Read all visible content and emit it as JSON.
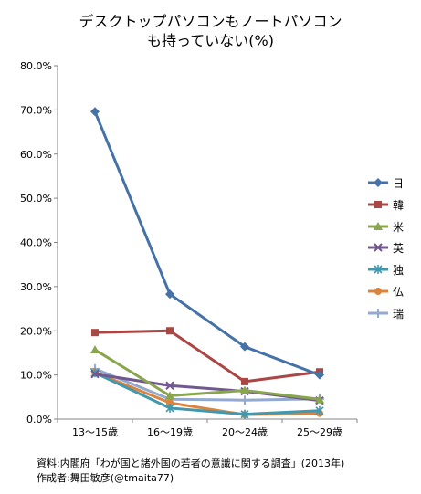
{
  "title_line1": "デスクトップパソコンもノートパソコン",
  "title_line2": "も持っていない(%)",
  "source_note": "資料:内閣府「わが国と諸外国の若者の意識に関する調査」(2013年)",
  "author_note": "作成者:舞田敏彦(@tmaita77)",
  "chart_data": {
    "type": "line",
    "categories": [
      "13～15歳",
      "16～19歳",
      "20～24歳",
      "25～29歳"
    ],
    "ylim": [
      0,
      80
    ],
    "yticks": [
      "0.0%",
      "10.0%",
      "20.0%",
      "30.0%",
      "40.0%",
      "50.0%",
      "60.0%",
      "70.0%",
      "80.0%"
    ],
    "grid": false,
    "legend_position": "right",
    "series": [
      {
        "name": "日",
        "color": "#4572A7",
        "marker": "diamond",
        "values": [
          69.6,
          28.3,
          16.4,
          10.0
        ]
      },
      {
        "name": "韓",
        "color": "#AA4643",
        "marker": "square",
        "values": [
          19.6,
          20.0,
          8.5,
          10.7
        ]
      },
      {
        "name": "米",
        "color": "#89A54E",
        "marker": "triangle",
        "values": [
          15.7,
          5.3,
          6.5,
          4.5
        ]
      },
      {
        "name": "英",
        "color": "#71588F",
        "marker": "x",
        "values": [
          10.2,
          7.6,
          6.3,
          4.2
        ]
      },
      {
        "name": "独",
        "color": "#4198AF",
        "marker": "asterisk",
        "values": [
          10.5,
          2.5,
          1.1,
          1.9
        ]
      },
      {
        "name": "仏",
        "color": "#DB843D",
        "marker": "circle",
        "values": [
          10.6,
          3.7,
          1.0,
          1.3
        ]
      },
      {
        "name": "瑞",
        "color": "#93A9CF",
        "marker": "plus",
        "values": [
          11.4,
          4.5,
          4.3,
          4.6
        ]
      }
    ]
  }
}
